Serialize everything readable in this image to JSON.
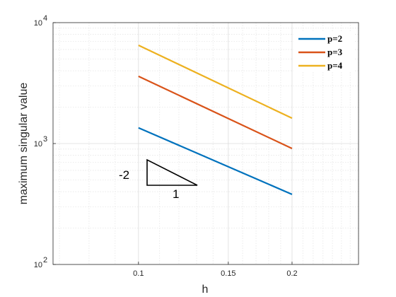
{
  "chart_data": {
    "type": "line",
    "xlabel": "h",
    "ylabel": "maximum singular value",
    "xscale": "log",
    "yscale": "log",
    "xlim": [
      0.068,
      0.27
    ],
    "ylim": [
      100,
      10000
    ],
    "grid": true,
    "x_ticks": [
      {
        "value": 0.1,
        "label": "0.1"
      },
      {
        "value": 0.15,
        "label": "0.15"
      },
      {
        "value": 0.2,
        "label": "0.2"
      }
    ],
    "y_ticks": [
      {
        "value": 100,
        "base": "10",
        "exp": "2"
      },
      {
        "value": 1000,
        "base": "10",
        "exp": "3"
      },
      {
        "value": 10000,
        "base": "10",
        "exp": "4"
      }
    ],
    "legend_position": "top-right",
    "series": [
      {
        "name": "p=2",
        "color": "#0072BD",
        "x": [
          0.1,
          0.2
        ],
        "y": [
          1350,
          380
        ]
      },
      {
        "name": "p=3",
        "color": "#D95319",
        "x": [
          0.1,
          0.2
        ],
        "y": [
          3600,
          910
        ]
      },
      {
        "name": "p=4",
        "color": "#EDB120",
        "x": [
          0.1,
          0.2
        ],
        "y": [
          6500,
          1620
        ]
      }
    ],
    "annotation": {
      "vertical_label": "-2",
      "horizontal_label": "1"
    }
  }
}
